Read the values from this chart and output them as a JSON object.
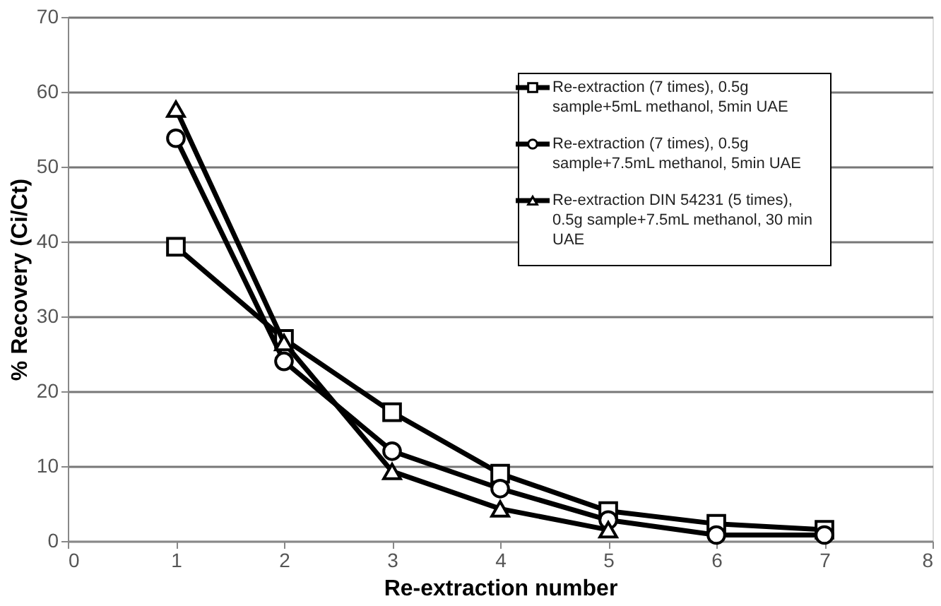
{
  "chart_data": {
    "type": "line",
    "xlabel": "Re-extraction number",
    "ylabel": "% Recovery (Ci/Ct)",
    "xlim": [
      0,
      8
    ],
    "xticks": [
      0,
      1,
      2,
      3,
      4,
      5,
      6,
      7,
      8
    ],
    "ylim": [
      0,
      70
    ],
    "yticks": [
      0,
      10,
      20,
      30,
      40,
      50,
      60,
      70
    ],
    "grid": "y",
    "legend": "top right",
    "line_style": "solid",
    "series": [
      {
        "name": "Re-extraction (7 times), 0.5g sample+5mL methanol, 5min UAE",
        "color": "#000000",
        "marker": "square",
        "x": [
          1,
          2,
          3,
          4,
          5,
          6,
          7
        ],
        "values": [
          39.3,
          27,
          17.2,
          9,
          4,
          2.3,
          1.5
        ]
      },
      {
        "name": "Re-extraction (7 times), 0.5g sample+7.5mL methanol, 5min UAE",
        "color": "#000000",
        "marker": "circle",
        "x": [
          1,
          2,
          3,
          4,
          5,
          6,
          7
        ],
        "values": [
          53.8,
          24,
          12,
          7,
          2.8,
          0.8,
          0.8
        ]
      },
      {
        "name": "Re-extraction DIN 54231 (5 times), 0.5g sample+7.5mL methanol, 30 min UAE",
        "color": "#000000",
        "marker": "triangle",
        "x": [
          1,
          2,
          3,
          4,
          5
        ],
        "values": [
          57.7,
          26.5,
          9.3,
          4.3,
          1.5
        ]
      }
    ]
  }
}
